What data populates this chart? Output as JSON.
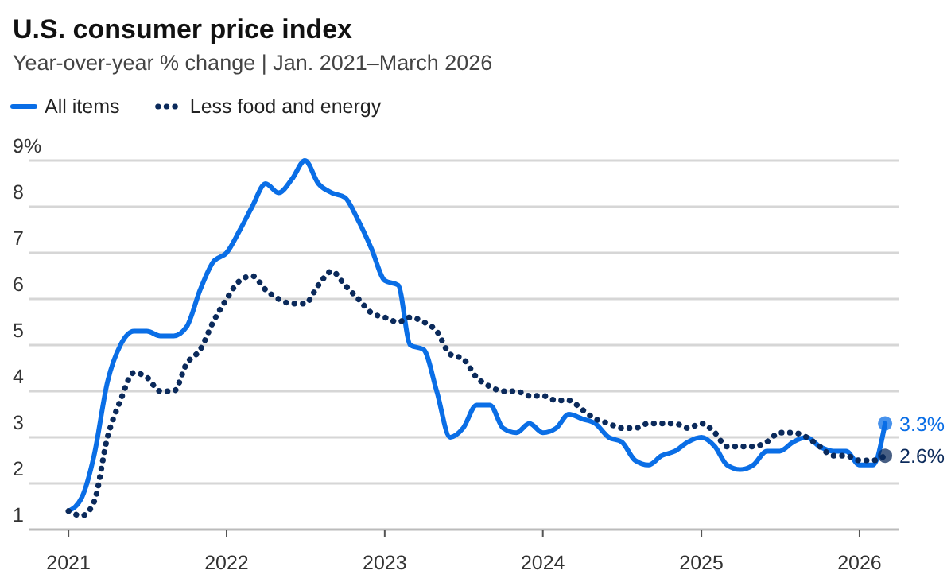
{
  "chart_data": {
    "type": "line",
    "title": "U.S. consumer price index",
    "subtitle": "Year-over-year % change | Jan. 2021–March 2026",
    "x": [
      "2021-01",
      "2021-02",
      "2021-03",
      "2021-04",
      "2021-05",
      "2021-06",
      "2021-07",
      "2021-08",
      "2021-09",
      "2021-10",
      "2021-11",
      "2021-12",
      "2022-01",
      "2022-02",
      "2022-03",
      "2022-04",
      "2022-05",
      "2022-06",
      "2022-07",
      "2022-08",
      "2022-09",
      "2022-10",
      "2022-11",
      "2022-12",
      "2023-01",
      "2023-02",
      "2023-03",
      "2023-04",
      "2023-05",
      "2023-06",
      "2023-07",
      "2023-08",
      "2023-09",
      "2023-10",
      "2023-11",
      "2023-12",
      "2024-01",
      "2024-02",
      "2024-03",
      "2024-04",
      "2024-05",
      "2024-06",
      "2024-07",
      "2024-08",
      "2024-09",
      "2024-10",
      "2024-11",
      "2024-12",
      "2025-01",
      "2025-02",
      "2025-03",
      "2025-04",
      "2025-05",
      "2025-06",
      "2025-07",
      "2025-08",
      "2025-09",
      "2025-10",
      "2025-11",
      "2025-12",
      "2026-01",
      "2026-02",
      "2026-03"
    ],
    "series": [
      {
        "name": "All items",
        "color": "#0a6ee6",
        "line_style": "solid",
        "values": [
          1.4,
          1.7,
          2.6,
          4.2,
          5.0,
          5.3,
          5.3,
          5.2,
          5.2,
          5.4,
          6.2,
          6.8,
          7.0,
          7.5,
          8.0,
          8.5,
          8.3,
          8.6,
          9.0,
          8.5,
          8.3,
          8.2,
          7.7,
          7.1,
          6.4,
          6.3,
          5.0,
          4.9,
          4.0,
          3.0,
          3.2,
          3.7,
          3.7,
          3.2,
          3.1,
          3.3,
          3.1,
          3.2,
          3.5,
          3.4,
          3.3,
          3.0,
          2.9,
          2.5,
          2.4,
          2.6,
          2.7,
          2.9,
          3.0,
          2.8,
          2.4,
          2.3,
          2.4,
          2.7,
          2.7,
          2.9,
          3.0,
          2.8,
          2.7,
          2.7,
          2.4,
          2.4,
          3.3
        ],
        "value_labels": [
          null,
          null,
          null,
          null,
          null,
          null,
          null,
          null,
          null,
          null,
          null,
          null,
          null,
          null,
          null,
          null,
          null,
          null,
          null,
          null,
          null,
          null,
          null,
          null,
          null,
          null,
          null,
          null,
          null,
          null,
          null,
          null,
          null,
          null,
          null,
          null,
          null,
          null,
          null,
          null,
          null,
          null,
          null,
          null,
          null,
          null,
          null,
          null,
          null,
          null,
          null,
          null,
          null,
          null,
          null,
          null,
          null,
          null,
          null,
          null,
          null,
          null,
          "3.3%"
        ]
      },
      {
        "name": "Less food and energy",
        "color": "#0b2a5b",
        "line_style": "dotted",
        "values": [
          1.4,
          1.3,
          1.6,
          3.0,
          3.8,
          4.4,
          4.3,
          4.0,
          4.0,
          4.6,
          4.9,
          5.5,
          6.0,
          6.4,
          6.5,
          6.2,
          6.0,
          5.9,
          5.9,
          6.3,
          6.6,
          6.3,
          6.0,
          5.7,
          5.6,
          5.5,
          5.6,
          5.5,
          5.3,
          4.8,
          4.7,
          4.3,
          4.1,
          4.0,
          4.0,
          3.9,
          3.9,
          3.8,
          3.8,
          3.6,
          3.4,
          3.3,
          3.2,
          3.2,
          3.3,
          3.3,
          3.3,
          3.2,
          3.3,
          3.1,
          2.8,
          2.8,
          2.8,
          2.9,
          3.1,
          3.1,
          3.0,
          2.8,
          2.6,
          2.6,
          2.5,
          2.5,
          2.6
        ],
        "value_labels": [
          null,
          null,
          null,
          null,
          null,
          null,
          null,
          null,
          null,
          null,
          null,
          null,
          null,
          null,
          null,
          null,
          null,
          null,
          null,
          null,
          null,
          null,
          null,
          null,
          null,
          null,
          null,
          null,
          null,
          null,
          null,
          null,
          null,
          null,
          null,
          null,
          null,
          null,
          null,
          null,
          null,
          null,
          null,
          null,
          null,
          null,
          null,
          null,
          null,
          null,
          null,
          null,
          null,
          null,
          null,
          null,
          null,
          null,
          null,
          null,
          null,
          null,
          "2.6%"
        ]
      }
    ],
    "xlim": [
      "2020-10",
      "2026-04"
    ],
    "xticks": [
      {
        "value": "2021-01",
        "label": "2021"
      },
      {
        "value": "2022-01",
        "label": "2022"
      },
      {
        "value": "2023-01",
        "label": "2023"
      },
      {
        "value": "2024-01",
        "label": "2024"
      },
      {
        "value": "2025-01",
        "label": "2025"
      },
      {
        "value": "2026-01",
        "label": "2026"
      }
    ],
    "ylim": [
      1,
      9
    ],
    "yticks": [
      1,
      2,
      3,
      4,
      5,
      6,
      7,
      8,
      {
        "value": 9,
        "label": "9%"
      }
    ],
    "grid": "y",
    "legend": "top"
  }
}
